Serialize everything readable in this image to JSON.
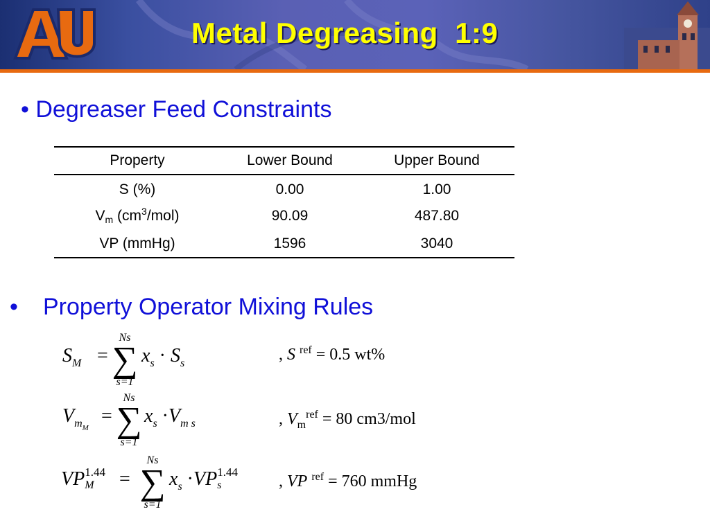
{
  "header": {
    "title": "Metal Degreasing  1:9",
    "logo_text": "AU",
    "colors": {
      "banner": "#4a56a8",
      "stripe": "#e86a10",
      "title": "#ffff00",
      "logo_orange": "#e86a10",
      "logo_navy": "#1b2a6b"
    }
  },
  "section1": {
    "bullet": "•",
    "heading": "Degreaser Feed Constraints"
  },
  "table": {
    "headers": [
      "Property",
      "Lower Bound",
      "Upper Bound"
    ],
    "rows": [
      {
        "property": "S (%)",
        "lower": "0.00",
        "upper": "1.00"
      },
      {
        "property_main": "V",
        "property_sub": "m",
        "property_rest": " (cm",
        "property_sup": "3",
        "property_end": "/mol)",
        "lower": "90.09",
        "upper": "487.80"
      },
      {
        "property": "VP (mmHg)",
        "lower": "1596",
        "upper": "3040"
      }
    ]
  },
  "section2": {
    "bullet": "•",
    "heading": "Property Operator Mixing Rules"
  },
  "equations": [
    {
      "lhs": "S",
      "lhs_sub": "M",
      "eq": "=",
      "sum_top": "Ns",
      "sum_bottom": "s=1",
      "term1": "x",
      "term1_sub": "s",
      "dot": "·",
      "term2": "S",
      "term2_sub": "s",
      "ref_prefix": ", ",
      "ref_var": "S",
      "ref_sup": "ref",
      "ref_value": " = 0.5 wt%"
    },
    {
      "lhs": "V",
      "lhs_sub": "m",
      "lhs_subsub": "M",
      "eq": "=",
      "sum_top": "Ns",
      "sum_bottom": "s=1",
      "term1": "x",
      "term1_sub": "s",
      "dot": "·",
      "term2": "V",
      "term2_sub": "m s",
      "ref_prefix": ", ",
      "ref_var": "V",
      "ref_sub": "m",
      "ref_sup": "ref",
      "ref_value": " = 80 cm3/mol"
    },
    {
      "lhs": "VP",
      "lhs_sub": "M",
      "lhs_sup": "1.44",
      "eq": "=",
      "sum_top": "Ns",
      "sum_bottom": "s=1",
      "term1": "x",
      "term1_sub": "s",
      "dot": "·",
      "term2": "VP",
      "term2_sub": "s",
      "term2_sup": "1.44",
      "ref_prefix": ", ",
      "ref_var": "VP",
      "ref_sup": "ref",
      "ref_value": " = 760 mmHg"
    }
  ]
}
